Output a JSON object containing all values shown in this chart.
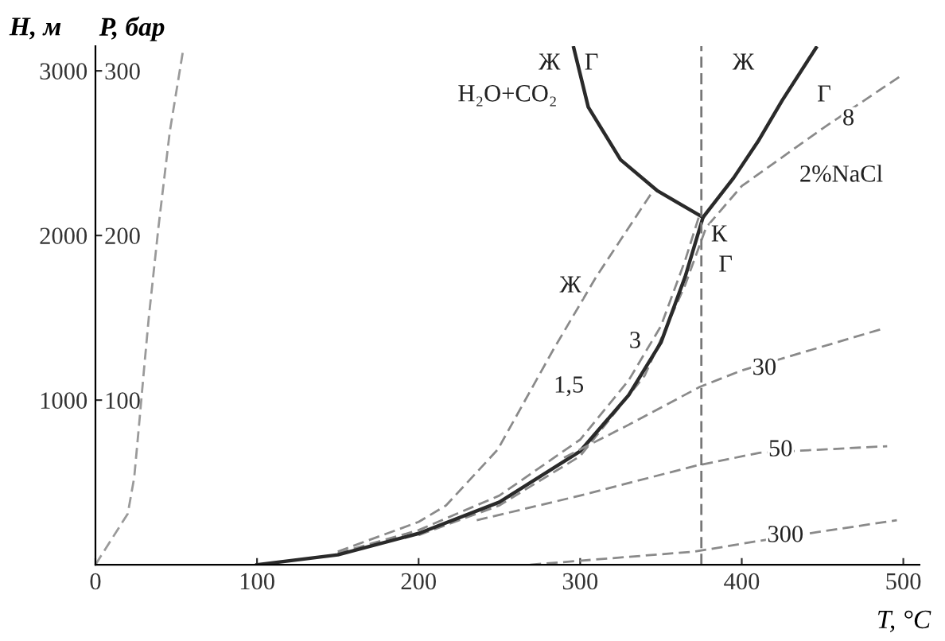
{
  "chart_data": {
    "type": "line",
    "xlabel": "T, °C",
    "ylabel": "H, м",
    "y2label": "P, бар",
    "xlim": [
      0,
      510
    ],
    "xticks": [
      0,
      100,
      200,
      300,
      400,
      500
    ],
    "ylim": [
      0,
      3150
    ],
    "yticks": [
      1000,
      2000,
      3000
    ],
    "y2lim": [
      0,
      315
    ],
    "y2ticks": [
      100,
      200,
      300
    ],
    "grid": false,
    "legend": false,
    "marker": "none",
    "series": [
      {
        "color": "#9a9a9a",
        "line_style": "dashed",
        "x": [
          0,
          20,
          24,
          27,
          30,
          33,
          39,
          46,
          54
        ],
        "values": [
          0,
          310,
          530,
          850,
          1180,
          1500,
          2050,
          2630,
          3110
        ]
      },
      {
        "color": "#8a8a8a",
        "line_style": "dashed",
        "x": [
          150,
          200,
          217,
          249,
          283,
          310,
          345
        ],
        "values": [
          80,
          260,
          360,
          700,
          1300,
          1750,
          2270
        ]
      },
      {
        "color": "#8a8a8a",
        "line_style": "dashed",
        "x": [
          150,
          200,
          250,
          300,
          330,
          350,
          365,
          374
        ],
        "values": [
          70,
          210,
          420,
          760,
          1120,
          1450,
          1850,
          2130
        ]
      },
      {
        "color": "#8a8a8a",
        "line_style": "dashed",
        "x": [
          200,
          250,
          300,
          340,
          365,
          378,
          400,
          450,
          500
        ],
        "values": [
          180,
          360,
          660,
          1150,
          1700,
          2050,
          2300,
          2650,
          2980
        ]
      },
      {
        "color": "#2a2a2a",
        "line_style": "solid",
        "x": [
          100,
          150,
          200,
          250,
          300,
          330,
          350,
          365,
          376,
          395,
          410,
          425,
          446
        ],
        "values": [
          0,
          60,
          190,
          380,
          690,
          1030,
          1350,
          1750,
          2110,
          2350,
          2570,
          2820,
          3140
        ]
      },
      {
        "color": "#2a2a2a",
        "line_style": "solid",
        "x": [
          296,
          305,
          325,
          348,
          376
        ],
        "values": [
          3140,
          2780,
          2460,
          2270,
          2110
        ]
      },
      {
        "color": "#8a8a8a",
        "line_style": "dashed",
        "x": [
          290,
          330,
          374,
          400,
          486
        ],
        "values": [
          650,
          850,
          1080,
          1180,
          1430
        ]
      },
      {
        "color": "#8a8a8a",
        "line_style": "dashed",
        "x": [
          236,
          300,
          371,
          411,
          490
        ],
        "values": [
          270,
          420,
          600,
          680,
          720
        ]
      },
      {
        "color": "#8a8a8a",
        "line_style": "dashed",
        "x": [
          269,
          371,
          414,
          496
        ],
        "values": [
          0,
          80,
          150,
          270
        ]
      }
    ],
    "ref_lines": [
      {
        "axis": "x",
        "value": 375,
        "color": "#777777",
        "line_style": "dashed"
      }
    ],
    "annotations": [
      {
        "text": "Ж",
        "x": 281,
        "y": 3043
      },
      {
        "text": "Г",
        "x": 307,
        "y": 3043
      },
      "H₂O+CO₂",
      {
        "text": "Ж",
        "x": 401,
        "y": 3043
      },
      {
        "text": "Г",
        "x": 451,
        "y": 2850
      },
      {
        "text": "8",
        "x": 466,
        "y": 2705
      },
      "2%NaCl",
      {
        "text": "К",
        "x": 386,
        "y": 2000
      },
      {
        "text": "Г",
        "x": 390,
        "y": 1816
      },
      {
        "text": "Ж",
        "x": 294,
        "y": 1690
      },
      {
        "text": "3",
        "x": 334,
        "y": 1353
      },
      {
        "text": "1,5",
        "x": 293,
        "y": 1082
      },
      {
        "text": "30",
        "x": 414,
        "y": 1190
      },
      {
        "text": "50",
        "x": 424,
        "y": 695
      },
      {
        "text": "300",
        "x": 427,
        "y": 174
      }
    ]
  }
}
